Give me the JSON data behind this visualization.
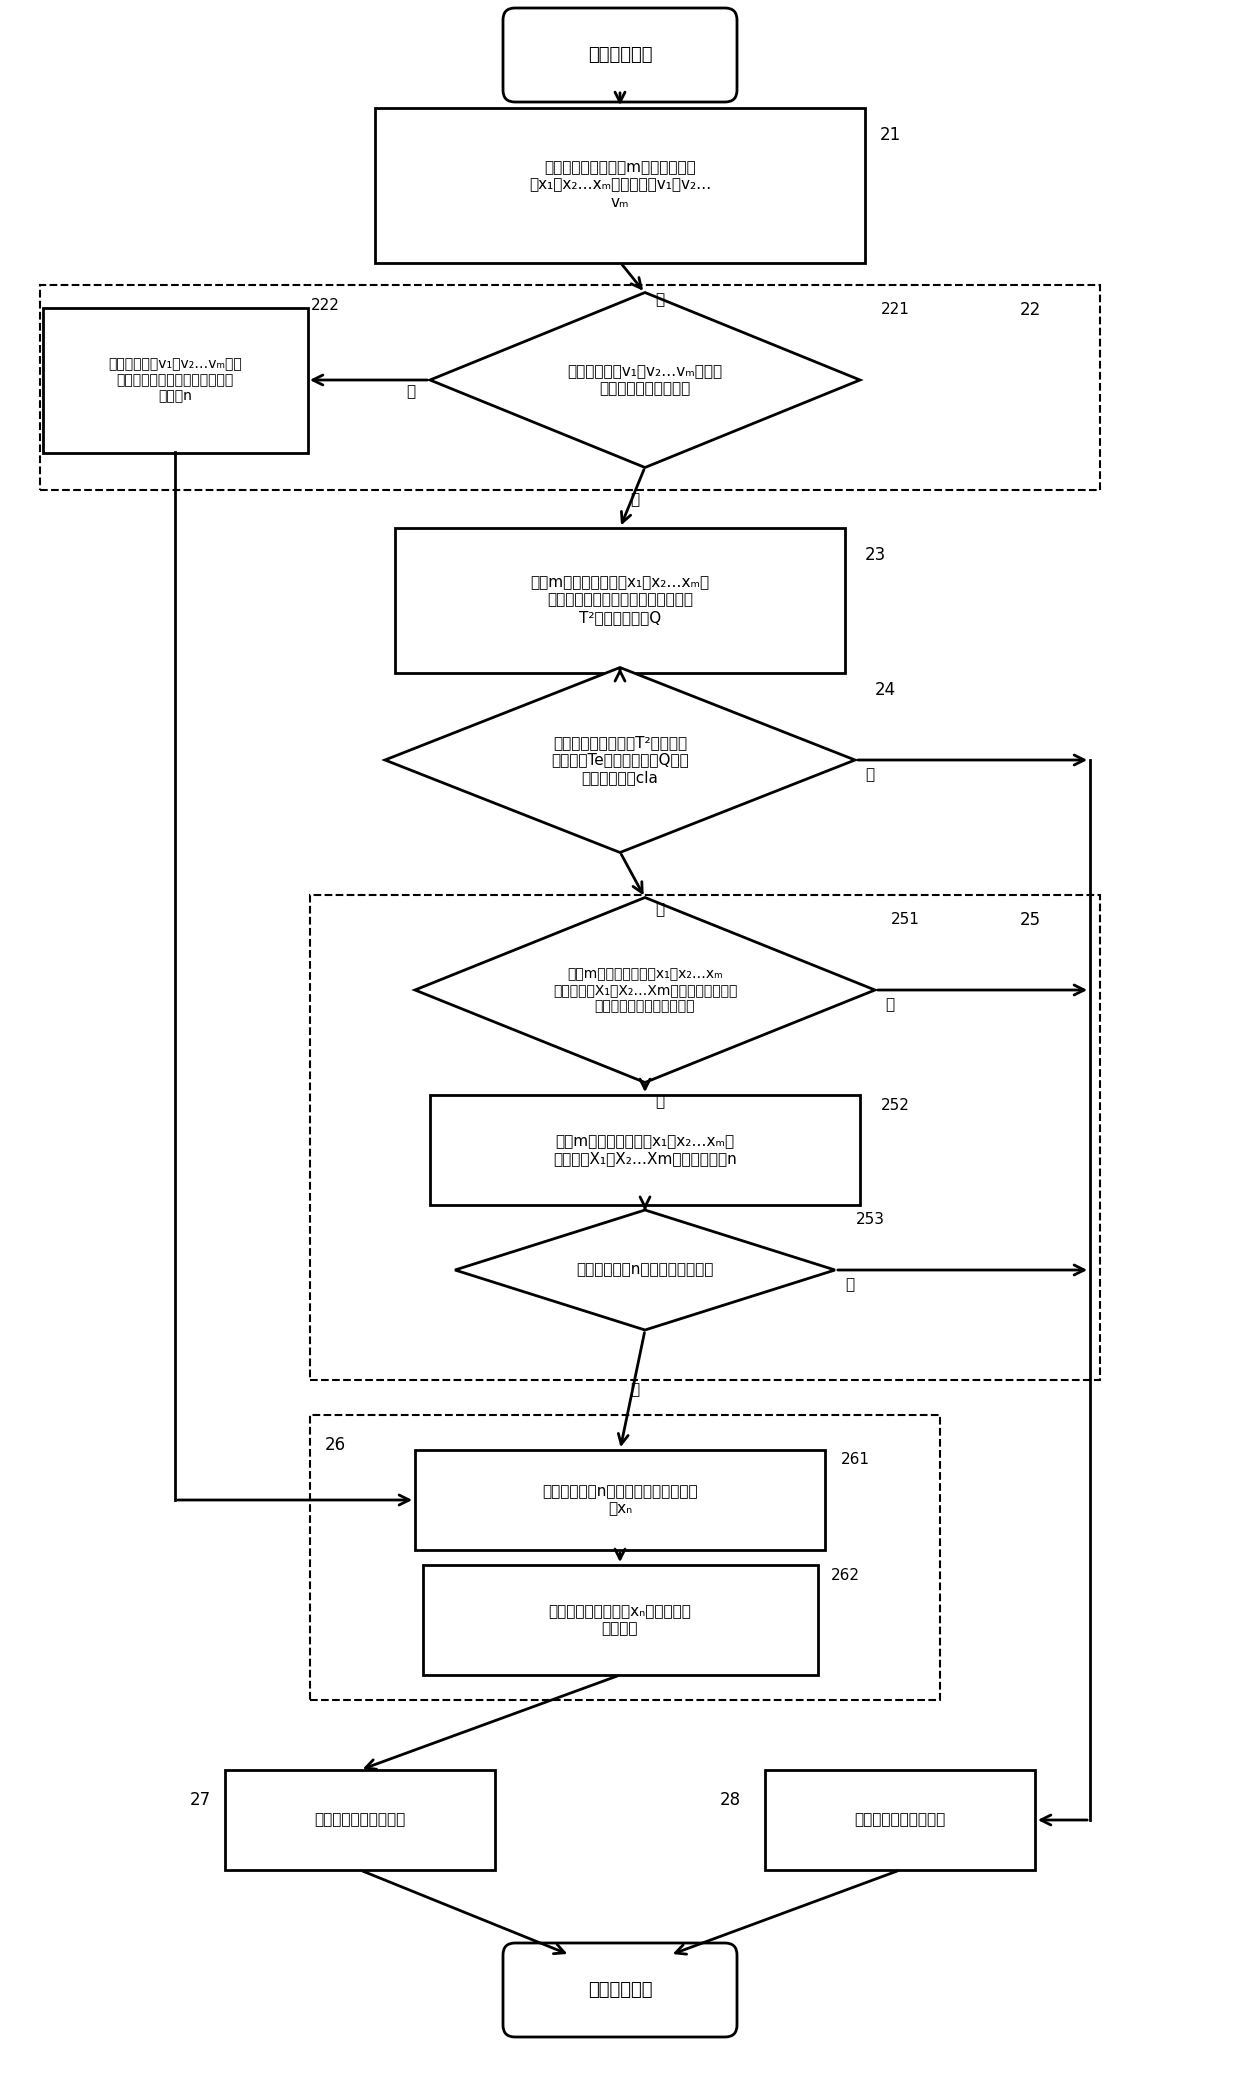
{
  "bg_color": "#ffffff",
  "nodes": {
    "start_text": "在线处理开始",
    "n21_text": "采集燃料电池系统中m个传感器的数\n据x₁，x₂…xₘ和反馈电压v₁，v₂…\nvₘ",
    "n21_label": "21",
    "n22_label": "22",
    "n221_text": "判断反馈电压v₁，v₂…vₘ是否在\n预设的正常电压范围内",
    "n221_label": "221",
    "n222_text": "定位反馈电压v₁，v₂…vₘ超出\n正常电压范围的传感器对应的故\n障部件n",
    "n222_label": "222",
    "n23_text": "根据m个传感器的数据x₁，x₂…xₘ建\n立实时数据矩阵统计计算第一诊断值\nT²和第二诊断值Q",
    "n23_label": "23",
    "n24_text": "判断是否第一诊断值T²大于第一\n故障阈值Te或第二诊断值Q大于\n第二故障阈值cla",
    "n24_label": "24",
    "n25_label": "25",
    "n251_text": "根据m个传感器的数据x₁，x₂…xₘ\n与故障阈值X₁，X₂…Xm检索所述故障数据\n库判断故障是否为可逆故障",
    "n251_label": "251",
    "n252_text": "根据m个传感器的数据x₁，x₂…xₘ与\n故障阈值X₁，X₂…Xm定位故障部件n",
    "n252_label": "252",
    "n253_text": "判断故障部件n是否为非核心部件",
    "n253_label": "253",
    "n26_label": "26",
    "n261_text": "重构故障部件n对应的传感器的数据信\n号xₙ",
    "n261_label": "261",
    "n262_text": "将重构后的数据信号xₙ传输给燃料\n电池系统",
    "n262_label": "262",
    "n27_text": "燃料电池系统继续运行",
    "n27_label": "27",
    "n28_text": "停机检修燃料电池系统",
    "n28_label": "28",
    "end_text": "在线处理结束"
  },
  "yes": "是",
  "no": "否"
}
